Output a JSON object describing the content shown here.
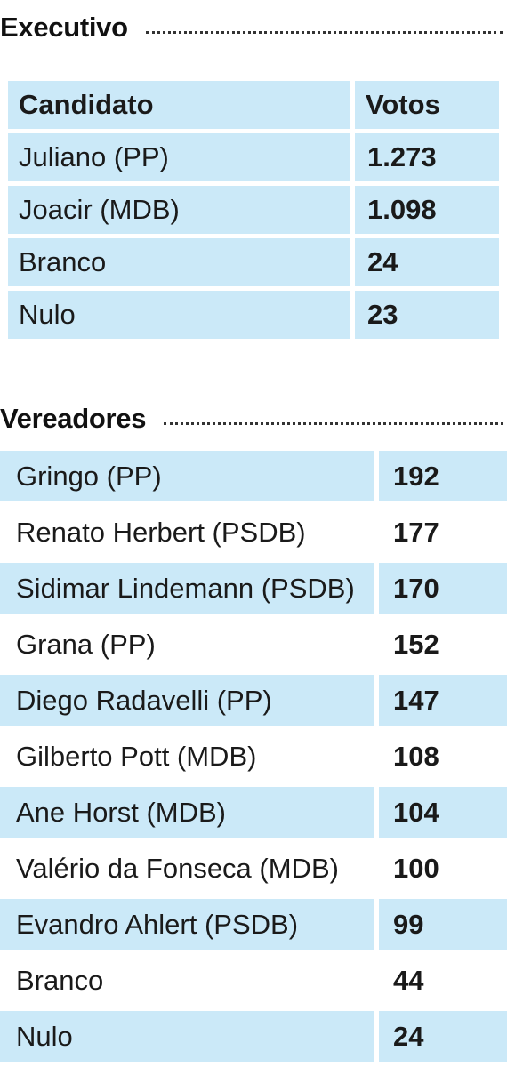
{
  "executivo": {
    "title": "Executivo",
    "header": {
      "candidate": "Candidato",
      "votes": "Votos"
    },
    "rows": [
      {
        "name": "Juliano (PP)",
        "votes": "1.273"
      },
      {
        "name": "Joacir (MDB)",
        "votes": "1.098"
      },
      {
        "name": "Branco",
        "votes": "24"
      },
      {
        "name": "Nulo",
        "votes": "23"
      }
    ]
  },
  "vereadores": {
    "title": "Vereadores",
    "rows": [
      {
        "name": "Gringo (PP)",
        "votes": "192"
      },
      {
        "name": "Renato Herbert (PSDB)",
        "votes": "177"
      },
      {
        "name": "Sidimar Lindemann (PSDB)",
        "votes": "170"
      },
      {
        "name": "Grana (PP)",
        "votes": "152"
      },
      {
        "name": "Diego Radavelli (PP)",
        "votes": "147"
      },
      {
        "name": "Gilberto Pott (MDB)",
        "votes": "108"
      },
      {
        "name": "Ane Horst (MDB)",
        "votes": "104"
      },
      {
        "name": "Valério da Fonseca (MDB)",
        "votes": "100"
      },
      {
        "name": "Evandro Ahlert (PSDB)",
        "votes": "99"
      },
      {
        "name": "Branco",
        "votes": "44"
      },
      {
        "name": "Nulo",
        "votes": "24"
      }
    ]
  },
  "colors": {
    "row_shade": "#cbe9f8",
    "text": "#1a1a1a"
  }
}
